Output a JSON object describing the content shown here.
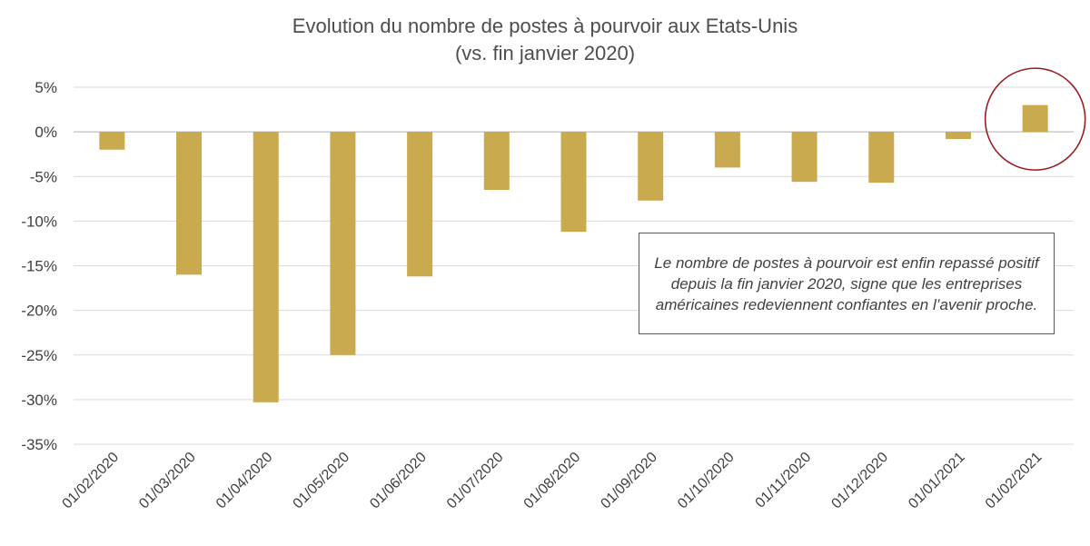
{
  "chart_data": {
    "type": "bar",
    "title": "Evolution du nombre de postes à pourvoir aux Etats-Unis",
    "subtitle": "(vs. fin janvier 2020)",
    "categories": [
      "01/02/2020",
      "01/03/2020",
      "01/04/2020",
      "01/05/2020",
      "01/06/2020",
      "01/07/2020",
      "01/08/2020",
      "01/09/2020",
      "01/10/2020",
      "01/11/2020",
      "01/12/2020",
      "01/01/2021",
      "01/02/2021"
    ],
    "values": [
      -2.0,
      -16.0,
      -30.3,
      -25.0,
      -16.2,
      -6.5,
      -11.2,
      -7.7,
      -4.0,
      -5.6,
      -5.7,
      -0.8,
      3.0
    ],
    "ylim": [
      -35,
      5
    ],
    "yticks": [
      5,
      0,
      -5,
      -10,
      -15,
      -20,
      -25,
      -30,
      -35
    ],
    "ytick_labels": [
      "5%",
      "0%",
      "-5%",
      "-10%",
      "-15%",
      "-20%",
      "-25%",
      "-30%",
      "-35%"
    ],
    "bar_color": "#c9aa4e",
    "highlight_color": "#9b1c23",
    "highlight_category": "01/02/2021",
    "grid": true,
    "annotation": "Le nombre de postes à pourvoir est enfin repassé positif depuis la fin janvier 2020, signe que les entreprises américaines redeviennent confiantes en l’avenir proche."
  }
}
